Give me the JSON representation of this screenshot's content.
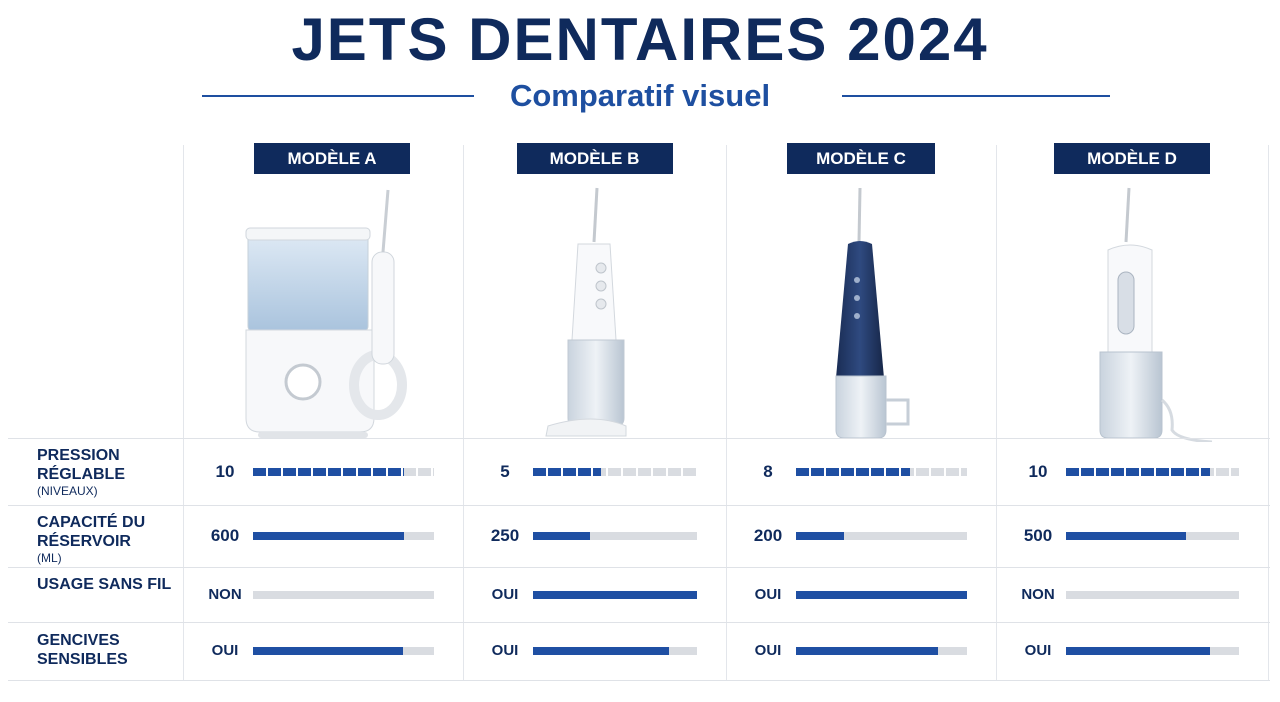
{
  "header": {
    "title": "JETS DENTAIRES 2024",
    "subtitle": "Comparatif visuel"
  },
  "models": [
    "MODÈLE A",
    "MODÈLE B",
    "MODÈLE C",
    "MODÈLE D"
  ],
  "rows": [
    {
      "label": "PRESSION RÉGLABLE",
      "unit": "(NIVEAUX)",
      "values": [
        10,
        5,
        8,
        10
      ]
    },
    {
      "label": "CAPACITÉ DU RÉSERVOIR",
      "unit": "(ML)",
      "values": [
        600,
        250,
        200,
        500
      ]
    },
    {
      "label": "USAGE SANS FIL",
      "values": [
        "NON",
        "OUI",
        "OUI",
        "NON"
      ]
    },
    {
      "label": "GENCIVES SENSIBLES",
      "values": [
        "OUI",
        "OUI",
        "OUI",
        "OUI"
      ]
    }
  ]
}
